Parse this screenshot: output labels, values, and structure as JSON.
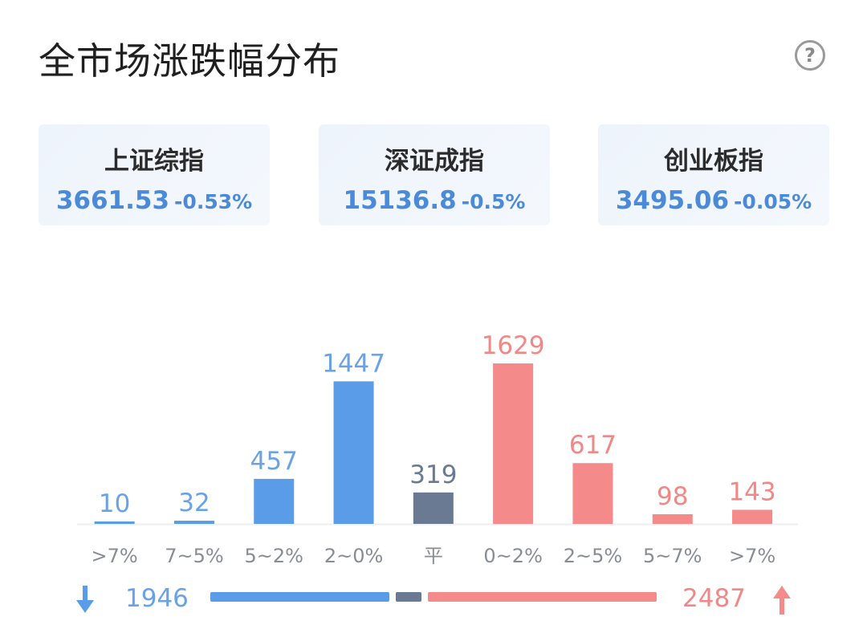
{
  "header": {
    "title": "全市场涨跌幅分布",
    "help_label": "?"
  },
  "indices": [
    {
      "name": "上证综指",
      "price": "3661.53",
      "change": "-0.53%"
    },
    {
      "name": "深证成指",
      "price": "15136.8",
      "change": "-0.5%"
    },
    {
      "name": "创业板指",
      "price": "3495.06",
      "change": "-0.05%"
    }
  ],
  "chart_data": {
    "type": "bar",
    "categories": [
      ">7%",
      "7~5%",
      "5~2%",
      "2~0%",
      "平",
      "0~2%",
      "2~5%",
      "5~7%",
      ">7%"
    ],
    "values": [
      10,
      32,
      457,
      1447,
      319,
      1629,
      617,
      98,
      143
    ],
    "groups": [
      "down",
      "down",
      "down",
      "down",
      "flat",
      "up",
      "up",
      "up",
      "up"
    ],
    "ylim": [
      0,
      1629
    ],
    "grid": false,
    "colors": {
      "down": "#5a9ce8",
      "flat": "#6b7a93",
      "up": "#f58a8a"
    },
    "label_colors": {
      "down": "#6aa2e6",
      "flat": "#6b7a93",
      "up": "#f08888"
    }
  },
  "summary": {
    "down_total": "1946",
    "up_total": "2487",
    "down_value": 1946,
    "flat_value": 319,
    "up_value": 2487
  }
}
